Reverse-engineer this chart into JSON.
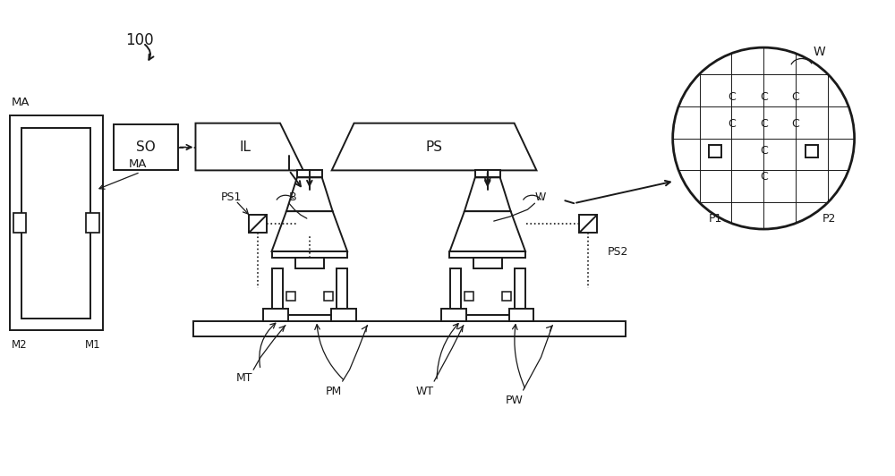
{
  "bg_color": "#ffffff",
  "lc": "#1a1a1a",
  "lw": 1.4,
  "fig_w": 10.0,
  "fig_h": 5.32,
  "labels": {
    "100": "100",
    "SO": "SO",
    "IL": "IL",
    "PS": "PS",
    "B": "B",
    "W": "W",
    "W_inset": "W",
    "PS1": "PS1",
    "PS2": "PS2",
    "MA1": "MA",
    "MA2": "MA",
    "MT": "MT",
    "PM": "PM",
    "WT": "WT",
    "PW": "PW",
    "M1": "M1",
    "M2": "M2",
    "P1": "P1",
    "P2": "P2",
    "C": "C"
  }
}
